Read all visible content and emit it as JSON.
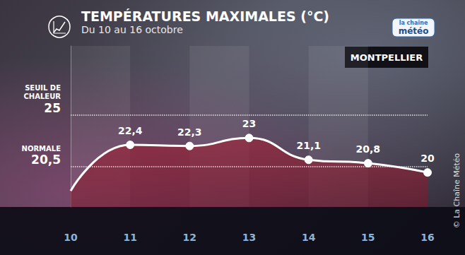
{
  "chart_data": {
    "type": "line",
    "title": "TEMPÉRATURES MAXIMALES (°C)",
    "subtitle": "Du 10 au 16 octobre",
    "location": "MONTPELLIER",
    "logo": [
      "la chaîne",
      "météo"
    ],
    "copyright": "© La Chaîne Météo",
    "categories": [
      "10",
      "11",
      "12",
      "13",
      "14",
      "15",
      "16"
    ],
    "values": [
      18.4,
      22.4,
      22.3,
      23,
      21.1,
      20.8,
      20
    ],
    "value_labels": [
      null,
      "22,4",
      "22,3",
      "23",
      "21,1",
      "20,8",
      "20"
    ],
    "data_labels": true,
    "color": "#ffffff",
    "marker": "circle",
    "line_style": "solid",
    "ylim": [
      17,
      31
    ],
    "yticks": [
      {
        "value": 20.5,
        "label": "20,5"
      },
      25
    ],
    "annotations": [
      {
        "text": "NORMALE",
        "y": 20.5
      },
      {
        "text": "SEUIL DE CHALEUR",
        "y": 25
      }
    ],
    "grid": true
  }
}
